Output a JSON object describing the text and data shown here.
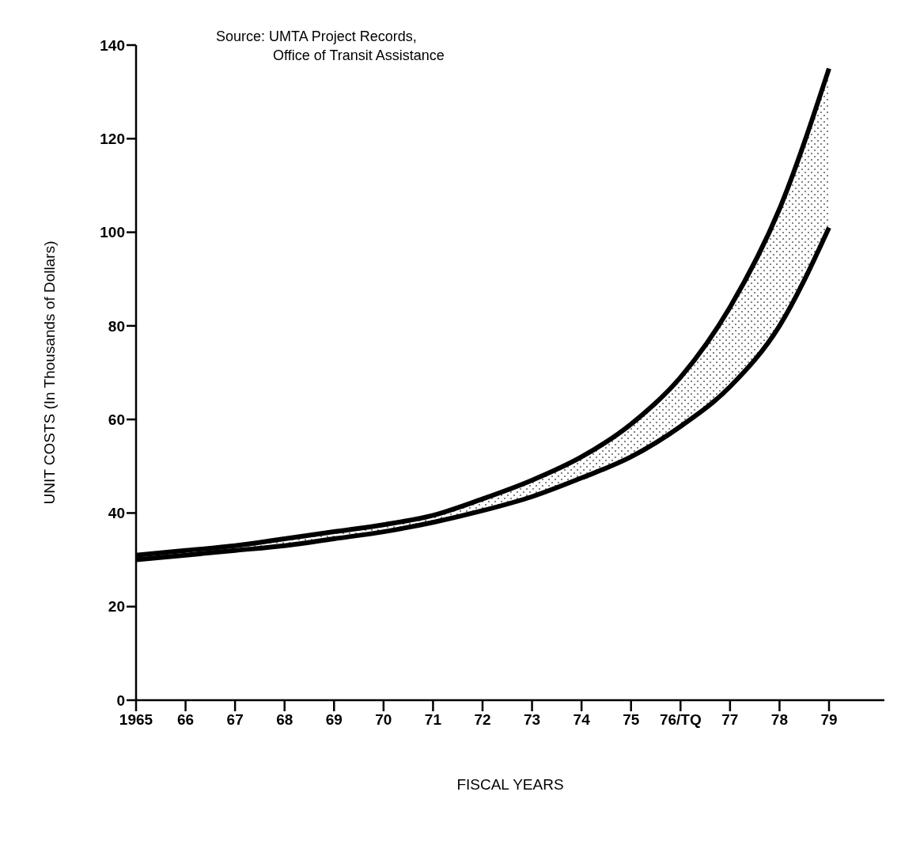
{
  "chart_data": {
    "type": "line",
    "xlabel": "FISCAL YEARS",
    "ylabel": "UNIT COSTS (In Thousands of Dollars)",
    "annotations": [
      "Source: UMTA Project Records,",
      "Office of Transit Assistance"
    ],
    "categories": [
      "1965",
      "66",
      "67",
      "68",
      "69",
      "70",
      "71",
      "72",
      "73",
      "74",
      "75",
      "76/TQ",
      "77",
      "78",
      "79"
    ],
    "series": [
      {
        "color": "#000000",
        "values": [
          31,
          32,
          33,
          34.5,
          36,
          37.5,
          39.5,
          43,
          47,
          52,
          59,
          69,
          84,
          105,
          135
        ],
        "lower": [
          30,
          31,
          32,
          33,
          34.5,
          36,
          38,
          40.5,
          43.5,
          47.5,
          52,
          58.5,
          67,
          80,
          101
        ],
        "upper": [
          31,
          32,
          33,
          34.5,
          36,
          37.5,
          39.5,
          43,
          47,
          52,
          59,
          69,
          84,
          105,
          135
        ]
      },
      {
        "color": "#000000",
        "values": [
          30,
          31,
          32,
          33,
          34.5,
          36,
          38,
          40.5,
          43.5,
          47.5,
          52,
          58.5,
          67,
          80,
          101
        ]
      }
    ],
    "ylim": [
      0,
      140
    ],
    "yticks": [
      0,
      20,
      40,
      60,
      80,
      100,
      120,
      140
    ],
    "grid": false,
    "marker": "none",
    "line_style": "solid"
  }
}
